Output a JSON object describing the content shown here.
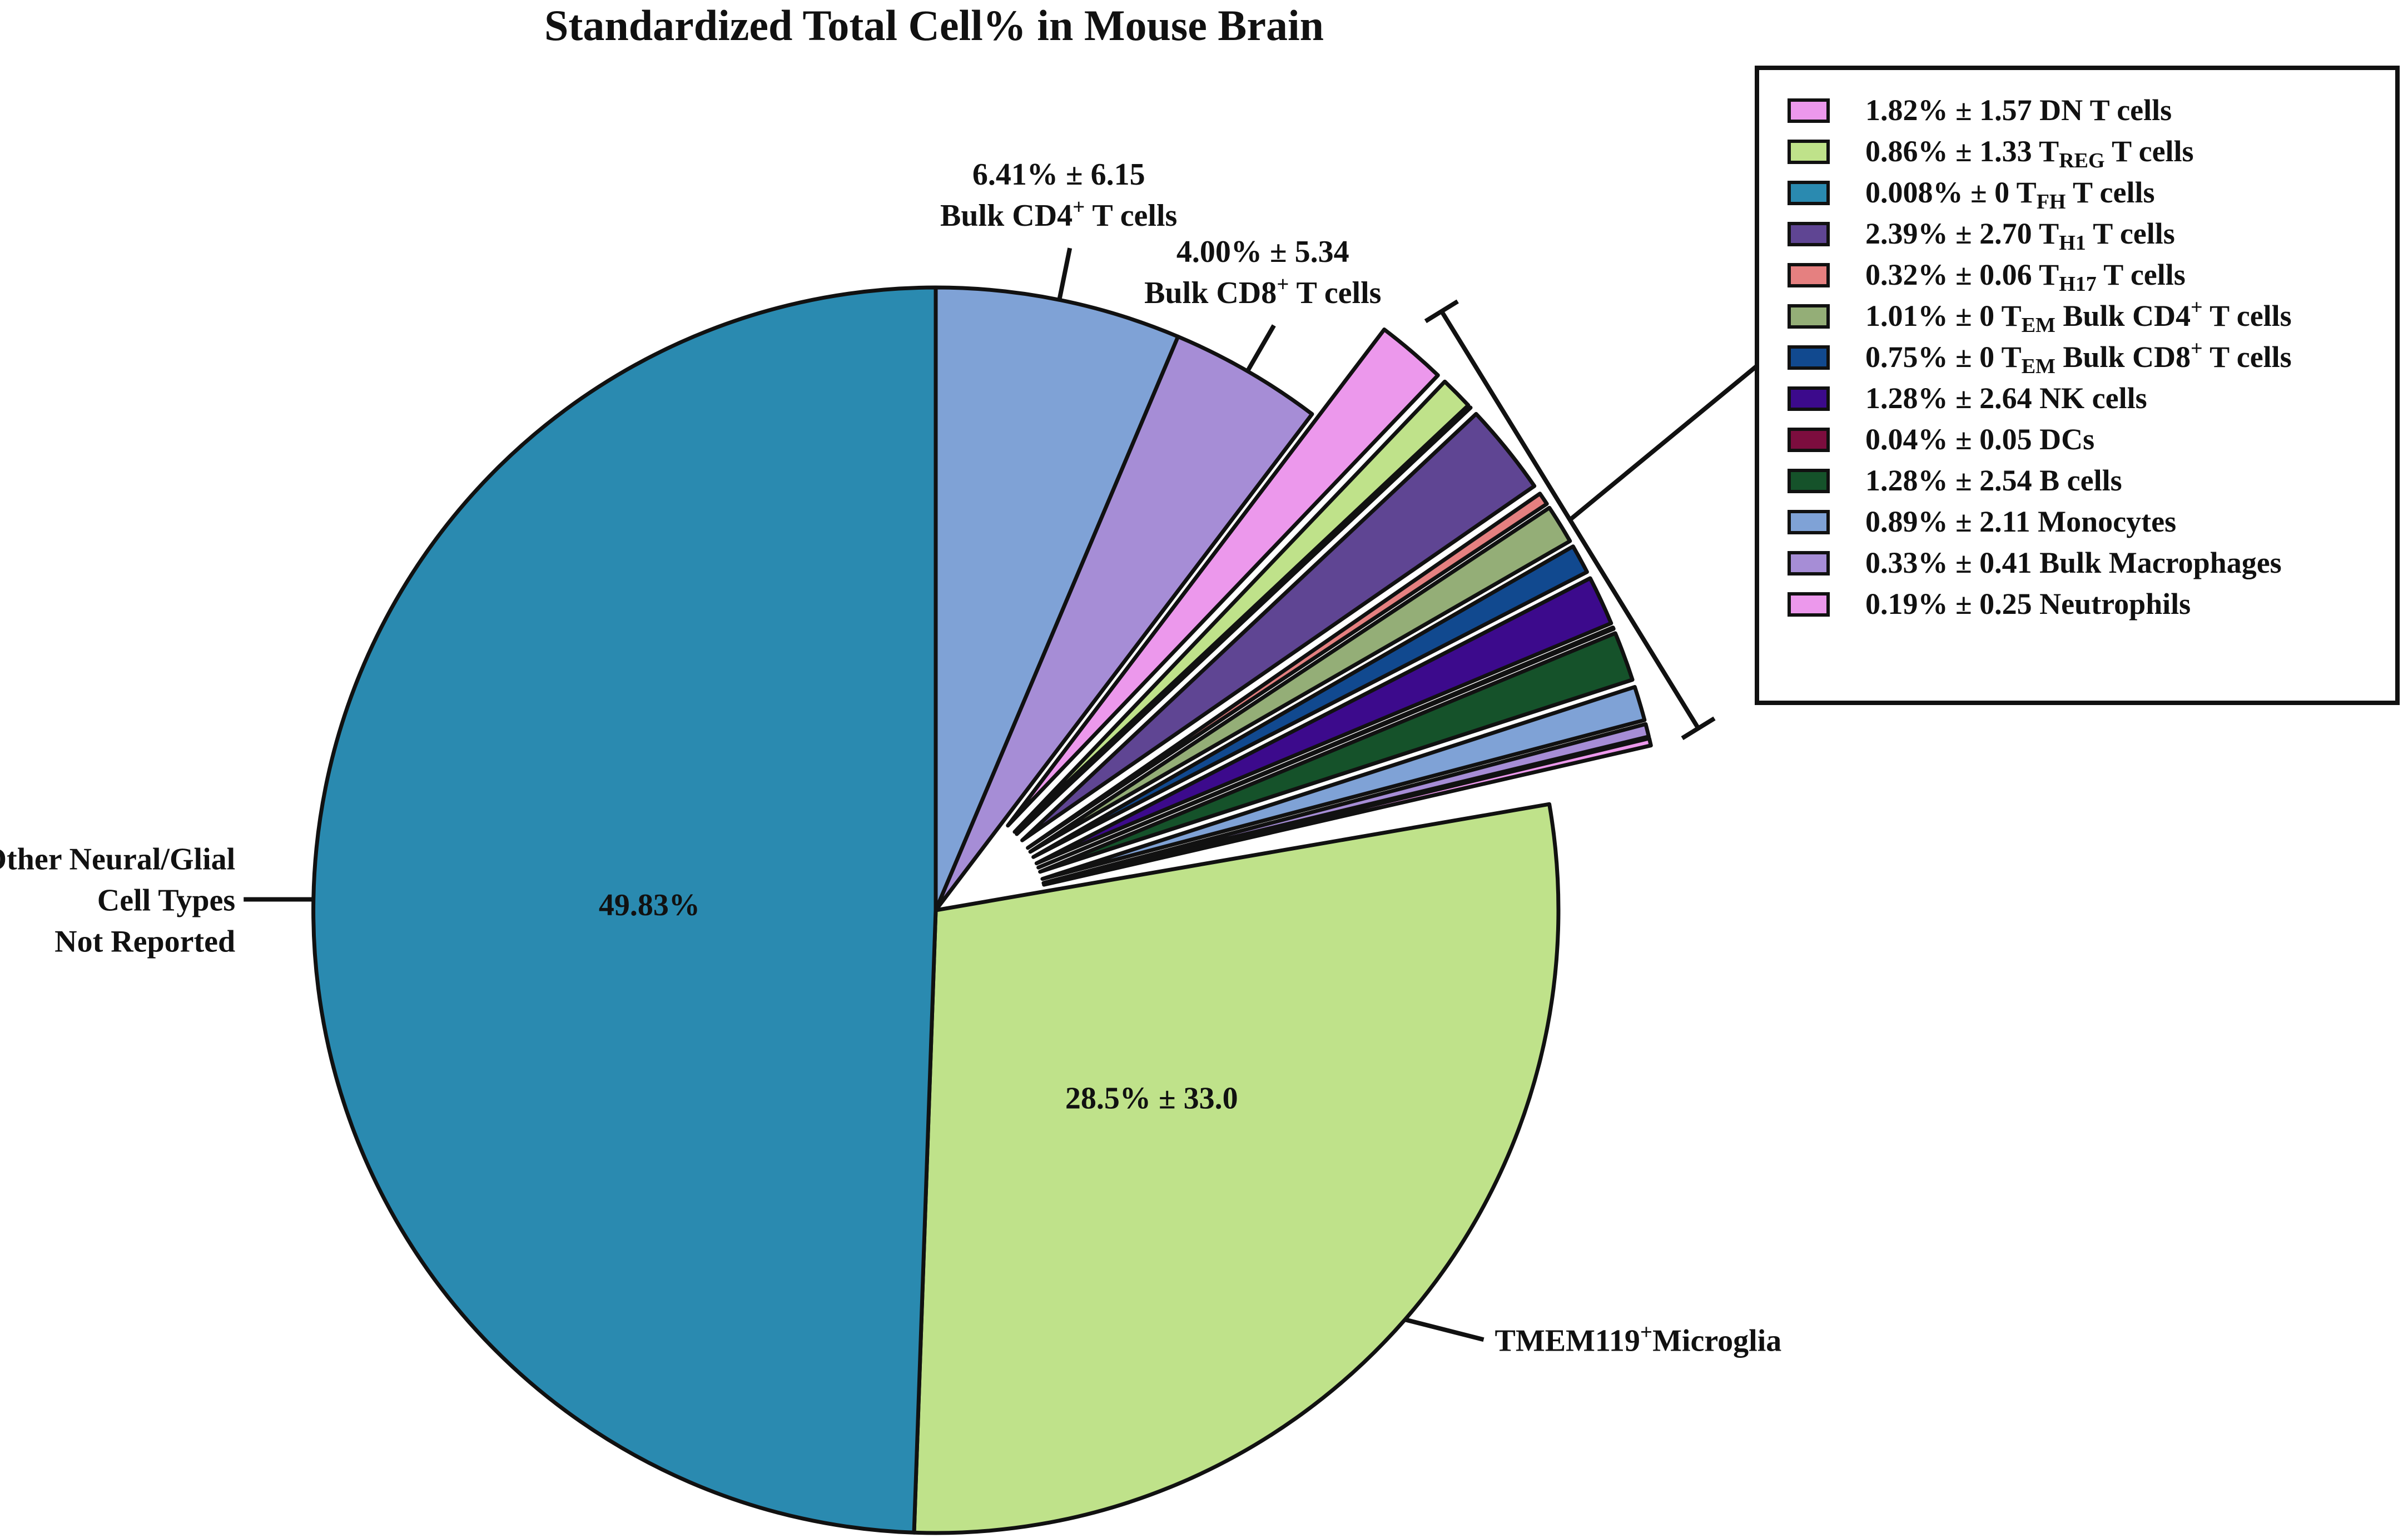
{
  "chart_data": {
    "type": "pie",
    "title": "Standardized  Total Cell% in Mouse Brain",
    "start_angle_deg": 0,
    "direction": "clockwise",
    "slices": [
      {
        "label": "Bulk CD4+ T cells",
        "value": 6.41,
        "color": "#7fa2d6",
        "label_lines": [
          [
            "6.41% ± 6.15"
          ],
          [
            "Bulk CD4",
            {
              "sup": "+"
            },
            " T cells"
          ]
        ]
      },
      {
        "label": "Bulk CD8+ T cells",
        "value": 4.0,
        "color": "#a68dd6",
        "label_lines": [
          [
            "4.00% ± 5.34"
          ],
          [
            "Bulk CD8",
            {
              "sup": "+"
            },
            " T cells"
          ]
        ]
      },
      {
        "label": "DN T cells",
        "value": 1.82,
        "color": "#ec98ec",
        "exploded": true
      },
      {
        "label": "TREG T cells",
        "value": 0.86,
        "color": "#bfe28a",
        "exploded": true
      },
      {
        "label": "TFH T cells",
        "value": 0.008,
        "color": "#2a8ab0",
        "exploded": true
      },
      {
        "label": "TH1 T cells",
        "value": 2.39,
        "color": "#5f4593",
        "exploded": true
      },
      {
        "label": "TH17 T cells",
        "value": 0.32,
        "color": "#e58080",
        "exploded": true
      },
      {
        "label": "TEM Bulk CD4+ T cells",
        "value": 1.01,
        "color": "#94ae77",
        "exploded": true
      },
      {
        "label": "TEM Bulk CD8+ T cells",
        "value": 0.75,
        "color": "#11498f",
        "exploded": true
      },
      {
        "label": "NK cells",
        "value": 1.28,
        "color": "#3c0a8c",
        "exploded": true
      },
      {
        "label": "DCs",
        "value": 0.04,
        "color": "#7c0d3e",
        "exploded": true
      },
      {
        "label": "B cells",
        "value": 1.28,
        "color": "#15522a",
        "exploded": true
      },
      {
        "label": "Monocytes",
        "value": 0.89,
        "color": "#7fa2d6",
        "exploded": true
      },
      {
        "label": "Bulk Macrophages",
        "value": 0.33,
        "color": "#a68dd6",
        "exploded": true
      },
      {
        "label": "Neutrophils",
        "value": 0.19,
        "color": "#ec98ec",
        "exploded": true
      },
      {
        "label": "gap",
        "value": 0.87,
        "color": "#ffffff",
        "blank": true
      },
      {
        "label": "TMEM119+Microglia",
        "value": 28.5,
        "color": "#bfe28a",
        "inner_label": "28.5% ± 33.0",
        "label_lines": [
          [
            "TMEM119",
            {
              "sup": "+"
            },
            "Microglia"
          ]
        ]
      },
      {
        "label": "Other Neural/Glial Cell Types Not Reported",
        "value": 49.83,
        "color": "#2a8ab0",
        "inner_label": "49.83%",
        "label_lines": [
          [
            "Other Neural/Glial"
          ],
          [
            "Cell Types"
          ],
          [
            "Not Reported"
          ]
        ]
      }
    ],
    "legend": {
      "placement": "top-right",
      "entries": [
        {
          "color": "#ec98ec",
          "parts": [
            "1.82% ± 1.57 DN T cells"
          ]
        },
        {
          "color": "#bfe28a",
          "parts": [
            "0.86% ± 1.33 T",
            {
              "sub": "REG"
            },
            " T cells"
          ]
        },
        {
          "color": "#2a8ab0",
          "parts": [
            "0.008% ± 0 T",
            {
              "sub": "FH"
            },
            " T cells"
          ]
        },
        {
          "color": "#5f4593",
          "parts": [
            "2.39% ± 2.70 T",
            {
              "sub": "H1"
            },
            " T cells"
          ]
        },
        {
          "color": "#e58080",
          "parts": [
            "0.32% ± 0.06 T",
            {
              "sub": "H17"
            },
            " T cells"
          ]
        },
        {
          "color": "#94ae77",
          "parts": [
            "1.01% ± 0 T",
            {
              "sub": "EM"
            },
            " Bulk CD4",
            {
              "sup": "+"
            },
            " T cells"
          ]
        },
        {
          "color": "#11498f",
          "parts": [
            "0.75% ± 0 T",
            {
              "sub": "EM"
            },
            " Bulk CD8",
            {
              "sup": "+"
            },
            " T cells"
          ]
        },
        {
          "color": "#3c0a8c",
          "parts": [
            "1.28% ± 2.64 NK cells"
          ]
        },
        {
          "color": "#7c0d3e",
          "parts": [
            "0.04% ± 0.05 DCs"
          ]
        },
        {
          "color": "#15522a",
          "parts": [
            "1.28% ± 2.54 B cells"
          ]
        },
        {
          "color": "#7fa2d6",
          "parts": [
            "0.89% ± 2.11 Monocytes"
          ]
        },
        {
          "color": "#a68dd6",
          "parts": [
            "0.33% ± 0.41 Bulk Macrophages"
          ]
        },
        {
          "color": "#ec98ec",
          "parts": [
            "0.19% ± 0.25 Neutrophils"
          ]
        }
      ]
    }
  }
}
